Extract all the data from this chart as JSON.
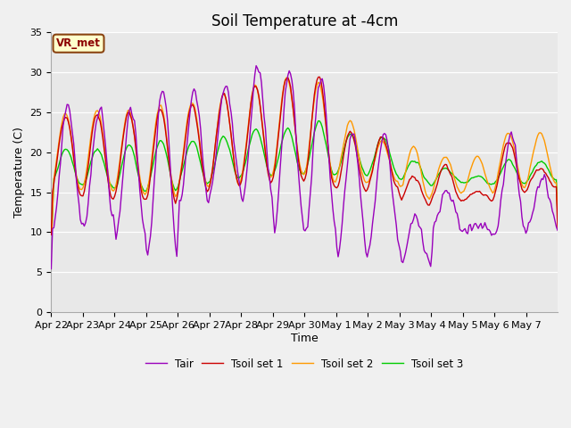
{
  "title": "Soil Temperature at -4cm",
  "xlabel": "Time",
  "ylabel": "Temperature (C)",
  "ylim": [
    0,
    35
  ],
  "yticks": [
    0,
    5,
    10,
    15,
    20,
    25,
    30,
    35
  ],
  "xtick_labels": [
    "Apr 22",
    "Apr 23",
    "Apr 24",
    "Apr 25",
    "Apr 26",
    "Apr 27",
    "Apr 28",
    "Apr 29",
    "Apr 30",
    "May 1",
    "May 2",
    "May 3",
    "May 4",
    "May 5",
    "May 6",
    "May 7"
  ],
  "line_colors": {
    "Tair": "#9900bb",
    "Tsoil1": "#cc0000",
    "Tsoil2": "#ff9900",
    "Tsoil3": "#00cc00"
  },
  "legend_labels": [
    "Tair",
    "Tsoil set 1",
    "Tsoil set 2",
    "Tsoil set 3"
  ],
  "vr_met_label": "VR_met",
  "title_fontsize": 12,
  "axis_fontsize": 9,
  "tick_fontsize": 8,
  "lw": 1.0,
  "fig_bg": "#f0f0f0",
  "plot_bg": "#e8e8e8"
}
